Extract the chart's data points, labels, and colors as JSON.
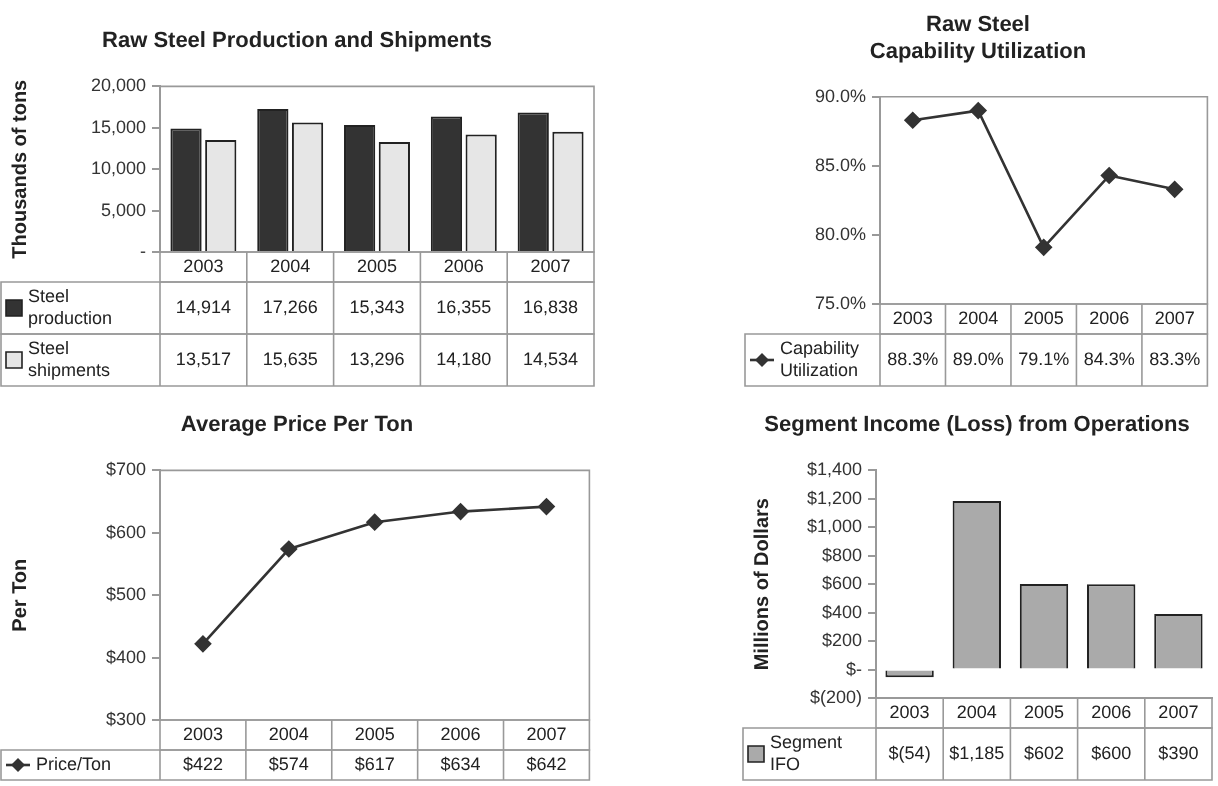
{
  "chart_data": [
    {
      "type": "bar",
      "title": "Raw Steel Production and Shipments",
      "ylabel": "Thousands of tons",
      "categories": [
        "2003",
        "2004",
        "2005",
        "2006",
        "2007"
      ],
      "series": [
        {
          "name": "Steel production",
          "color": "#333333",
          "values": [
            14914,
            17266,
            15343,
            16355,
            16838
          ],
          "value_labels": [
            "14,914",
            "17,266",
            "15,343",
            "16,355",
            "16,838"
          ]
        },
        {
          "name": "Steel shipments",
          "color": "#e6e6e6",
          "values": [
            13517,
            15635,
            13296,
            14180,
            14534
          ],
          "value_labels": [
            "13,517",
            "15,635",
            "13,296",
            "14,180",
            "14,534"
          ]
        }
      ],
      "ylim": [
        0,
        20000
      ],
      "yticks": [
        {
          "value": 0,
          "label": "-"
        },
        {
          "value": 5000,
          "label": "5,000"
        },
        {
          "value": 10000,
          "label": "10,000"
        },
        {
          "value": 15000,
          "label": "15,000"
        },
        {
          "value": 20000,
          "label": "20,000"
        }
      ],
      "grid": false,
      "legend": "bottom left"
    },
    {
      "type": "line",
      "title": "Raw Steel\nCapability Utilization",
      "categories": [
        "2003",
        "2004",
        "2005",
        "2006",
        "2007"
      ],
      "series": [
        {
          "name": "Capability Utilization",
          "color": "#333333",
          "values": [
            88.3,
            89.0,
            79.1,
            84.3,
            83.3
          ],
          "value_labels": [
            "88.3%",
            "89.0%",
            "79.1%",
            "84.3%",
            "83.3%"
          ]
        }
      ],
      "ylim": [
        75,
        90
      ],
      "yticks": [
        {
          "value": 75,
          "label": "75.0%"
        },
        {
          "value": 80,
          "label": "80.0%"
        },
        {
          "value": 85,
          "label": "85.0%"
        },
        {
          "value": 90,
          "label": "90.0%"
        }
      ],
      "grid": false,
      "legend": "bottom left",
      "marker": "diamond"
    },
    {
      "type": "line",
      "title": "Average Price Per Ton",
      "ylabel": "Per Ton",
      "categories": [
        "2003",
        "2004",
        "2005",
        "2006",
        "2007"
      ],
      "series": [
        {
          "name": "Price/Ton",
          "color": "#333333",
          "values": [
            422,
            574,
            617,
            634,
            642
          ],
          "value_labels": [
            "$422",
            "$574",
            "$617",
            "$634",
            "$642"
          ]
        }
      ],
      "ylim": [
        300,
        700
      ],
      "yticks": [
        {
          "value": 300,
          "label": "$300"
        },
        {
          "value": 400,
          "label": "$400"
        },
        {
          "value": 500,
          "label": "$500"
        },
        {
          "value": 600,
          "label": "$600"
        },
        {
          "value": 700,
          "label": "$700"
        }
      ],
      "grid": false,
      "legend": "bottom left",
      "marker": "diamond"
    },
    {
      "type": "bar",
      "title": "Segment Income (Loss) from Operations",
      "ylabel": "Millions of Dollars",
      "categories": [
        "2003",
        "2004",
        "2005",
        "2006",
        "2007"
      ],
      "series": [
        {
          "name": "Segment IFO",
          "color": "#aaaaaa",
          "values": [
            -54,
            1185,
            602,
            600,
            390
          ],
          "value_labels": [
            "$(54)",
            "$1,185",
            "$602",
            "$600",
            "$390"
          ]
        }
      ],
      "ylim": [
        -200,
        1400
      ],
      "yticks": [
        {
          "value": -200,
          "label": "$(200)"
        },
        {
          "value": 0,
          "label": "$-"
        },
        {
          "value": 200,
          "label": "$200"
        },
        {
          "value": 400,
          "label": "$400"
        },
        {
          "value": 600,
          "label": "$600"
        },
        {
          "value": 800,
          "label": "$800"
        },
        {
          "value": 1000,
          "label": "$1,000"
        },
        {
          "value": 1200,
          "label": "$1,200"
        },
        {
          "value": 1400,
          "label": "$1,400"
        }
      ],
      "grid": false,
      "legend": "bottom left"
    }
  ]
}
